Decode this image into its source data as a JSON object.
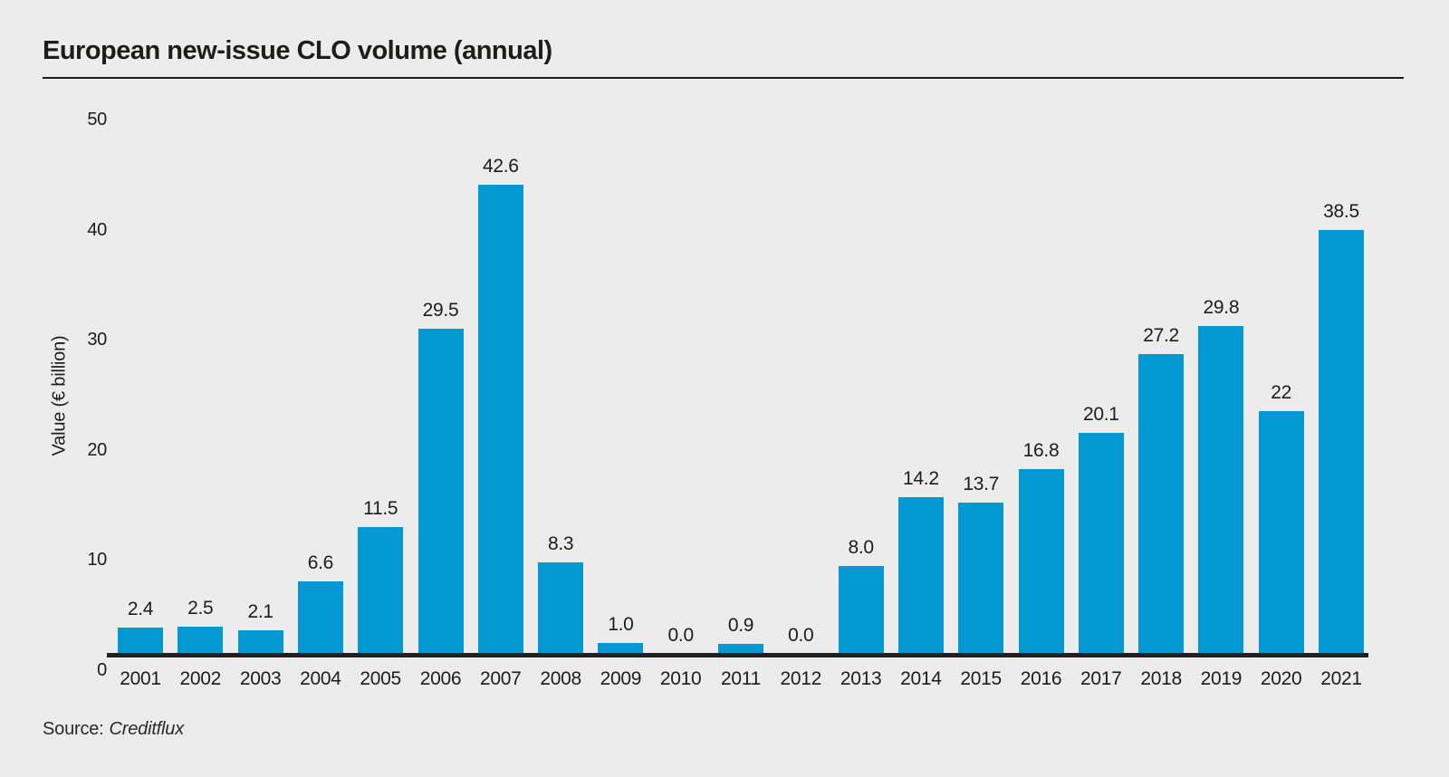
{
  "header": {
    "title": "European new-issue CLO volume (annual)"
  },
  "source": {
    "prefix": "Source:",
    "name": "Creditflux"
  },
  "colors": {
    "background": "#ececec",
    "bar": "#0599d3",
    "axis": "#231f20",
    "text": "#1d1d1b"
  },
  "chart_data": {
    "type": "bar",
    "title": "European new-issue CLO volume (annual)",
    "xlabel": "",
    "ylabel": "Value (€ billion)",
    "ylim": [
      0,
      50
    ],
    "yticks": [
      0,
      10,
      20,
      30,
      40,
      50
    ],
    "grid": false,
    "legend": null,
    "categories": [
      "2001",
      "2002",
      "2003",
      "2004",
      "2005",
      "2006",
      "2007",
      "2008",
      "2009",
      "2010",
      "2011",
      "2012",
      "2013",
      "2014",
      "2015",
      "2016",
      "2017",
      "2018",
      "2019",
      "2020",
      "2021"
    ],
    "values": [
      2.4,
      2.5,
      2.1,
      6.6,
      11.5,
      29.5,
      42.6,
      8.3,
      1.0,
      0.0,
      0.9,
      0.0,
      8.0,
      14.2,
      13.7,
      16.8,
      20.1,
      27.2,
      29.8,
      22,
      38.5
    ],
    "value_labels": [
      "2.4",
      "2.5",
      "2.1",
      "6.6",
      "11.5",
      "29.5",
      "42.6",
      "8.3",
      "1.0",
      "0.0",
      "0.9",
      "0.0",
      "8.0",
      "14.2",
      "13.7",
      "16.8",
      "20.1",
      "27.2",
      "29.8",
      "22",
      "38.5"
    ]
  }
}
